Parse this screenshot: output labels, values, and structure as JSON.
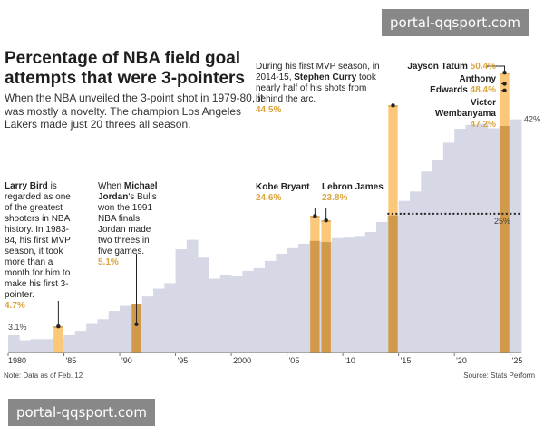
{
  "watermark": "portal-qqsport.com",
  "note": "Note: Data as of Feb. 12",
  "source": "Source: Stats Perform",
  "colors": {
    "base": "#d6d8e6",
    "highlight": "#fbc779",
    "highlight_dark": "#d19a4a",
    "value_text": "#d9a53c"
  },
  "chart_data": {
    "type": "bar",
    "title": "Percentage of NBA field goal attempts that were 3-pointers",
    "subtitle": "When the NBA unveiled the 3-point shot in 1979-80, it was mostly a novelty. The champion Los Angeles Lakers made just 20 threes all season.",
    "xlim": [
      1980,
      2025
    ],
    "ylim": [
      0,
      55
    ],
    "x_ticks": [
      "1980",
      "'85",
      "'90",
      "'95",
      "2000",
      "'05",
      "'10",
      "'15",
      "'20",
      "'25"
    ],
    "reference_lines": [
      {
        "value": 25,
        "label": "25%",
        "style": "dotted"
      },
      {
        "value": 42,
        "label": "42%",
        "style": "none"
      }
    ],
    "start_label": "3.1%",
    "series": [
      {
        "values": [
          3.1,
          2.2,
          2.4,
          2.4,
          2.7,
          3.1,
          3.9,
          5.3,
          6.0,
          7.5,
          8.4,
          8.7,
          10.1,
          11.5,
          12.5,
          18.6,
          20.3,
          17.1,
          13.3,
          13.9,
          13.7,
          14.7,
          15.2,
          16.5,
          17.8,
          18.8,
          19.6,
          20.1,
          19.9,
          20.6,
          20.7,
          21.0,
          21.7,
          23.5,
          24.7,
          27.3,
          29.0,
          32.6,
          34.6,
          37.8,
          40.3,
          41.0,
          41.2,
          40.4,
          40.8,
          42.0
        ]
      }
    ],
    "highlights": [
      {
        "player": "Larry Bird",
        "x": 1984,
        "value": 4.7
      },
      {
        "player": "Michael Jordan",
        "x": 1991,
        "value": 5.1
      },
      {
        "player": "Kobe Bryant",
        "x": 2007,
        "value": 24.6
      },
      {
        "player": "Lebron James",
        "x": 2008,
        "value": 23.8
      },
      {
        "player": "Stephen Curry",
        "x": 2014,
        "value": 44.5
      },
      {
        "player": "Jayson Tatum",
        "x": 2024,
        "value": 50.4
      },
      {
        "player": "Anthony Edwards",
        "x": 2024,
        "value": 48.4
      },
      {
        "player": "Victor Wembanyama",
        "x": 2024,
        "value": 47.2
      }
    ]
  },
  "annotations": {
    "bird": {
      "text": " is regarded as one of the greatest shooters in NBA history. In 1983-84, his first MVP season, it took more than a month for him to make his first 3-pointer.",
      "name": "Larry Bird",
      "value": "4.7%"
    },
    "jordan": {
      "pre": "When ",
      "name": "Michael Jordan",
      "text": "'s Bulls won the 1991 NBA finals, Jordan made two threes in five games.",
      "value": "5.1%"
    },
    "kobe": {
      "name": "Kobe Bryant",
      "value": "24.6%"
    },
    "lebron": {
      "name": "Lebron James",
      "value": "23.8%"
    },
    "curry": {
      "pre": "During his first MVP season, in 2014-15, ",
      "name": "Stephen Curry",
      "text": " took nearly half of his shots from behind the arc.",
      "value": "44.5%"
    },
    "tatum": {
      "name": "Jayson Tatum",
      "value": "50.4%"
    },
    "edwards": {
      "name1": "Anthony",
      "name2": "Edwards",
      "value": "48.4%"
    },
    "wemby": {
      "name1": "Victor",
      "name2": "Wembanyama",
      "value": "47.2%"
    }
  }
}
